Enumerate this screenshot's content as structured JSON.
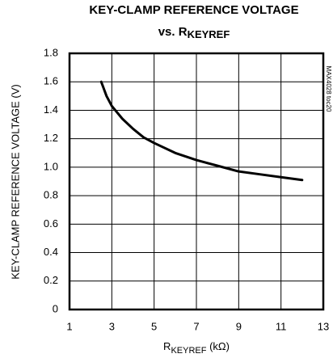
{
  "chart_data": {
    "type": "line",
    "title": "KEY-CLAMP REFERENCE VOLTAGE",
    "subtitle": [
      "vs. R",
      "KEYREF"
    ],
    "xlabel": [
      "R",
      "KEYREF",
      " (kΩ)"
    ],
    "ylabel": "KEY-CLAMP REFERENCE VOLTAGE (V)",
    "note": "MAX4028 toc20",
    "x": [
      2.5,
      2.75,
      3,
      3.5,
      4,
      4.5,
      5,
      6,
      7,
      8,
      9,
      10,
      11,
      12
    ],
    "values": [
      1.6,
      1.5,
      1.43,
      1.34,
      1.27,
      1.21,
      1.17,
      1.1,
      1.05,
      1.01,
      0.97,
      0.95,
      0.93,
      0.91
    ],
    "color": "#000000",
    "xlim": [
      1,
      13
    ],
    "xticks": [
      1,
      3,
      5,
      7,
      9,
      11,
      13
    ],
    "ylim": [
      0,
      1.8
    ],
    "yticks": [
      0,
      0.2,
      0.4,
      0.6,
      0.8,
      {
        "value": 1,
        "label": "1.0"
      },
      1.2,
      1.4,
      1.6,
      1.8
    ],
    "grid": true
  }
}
